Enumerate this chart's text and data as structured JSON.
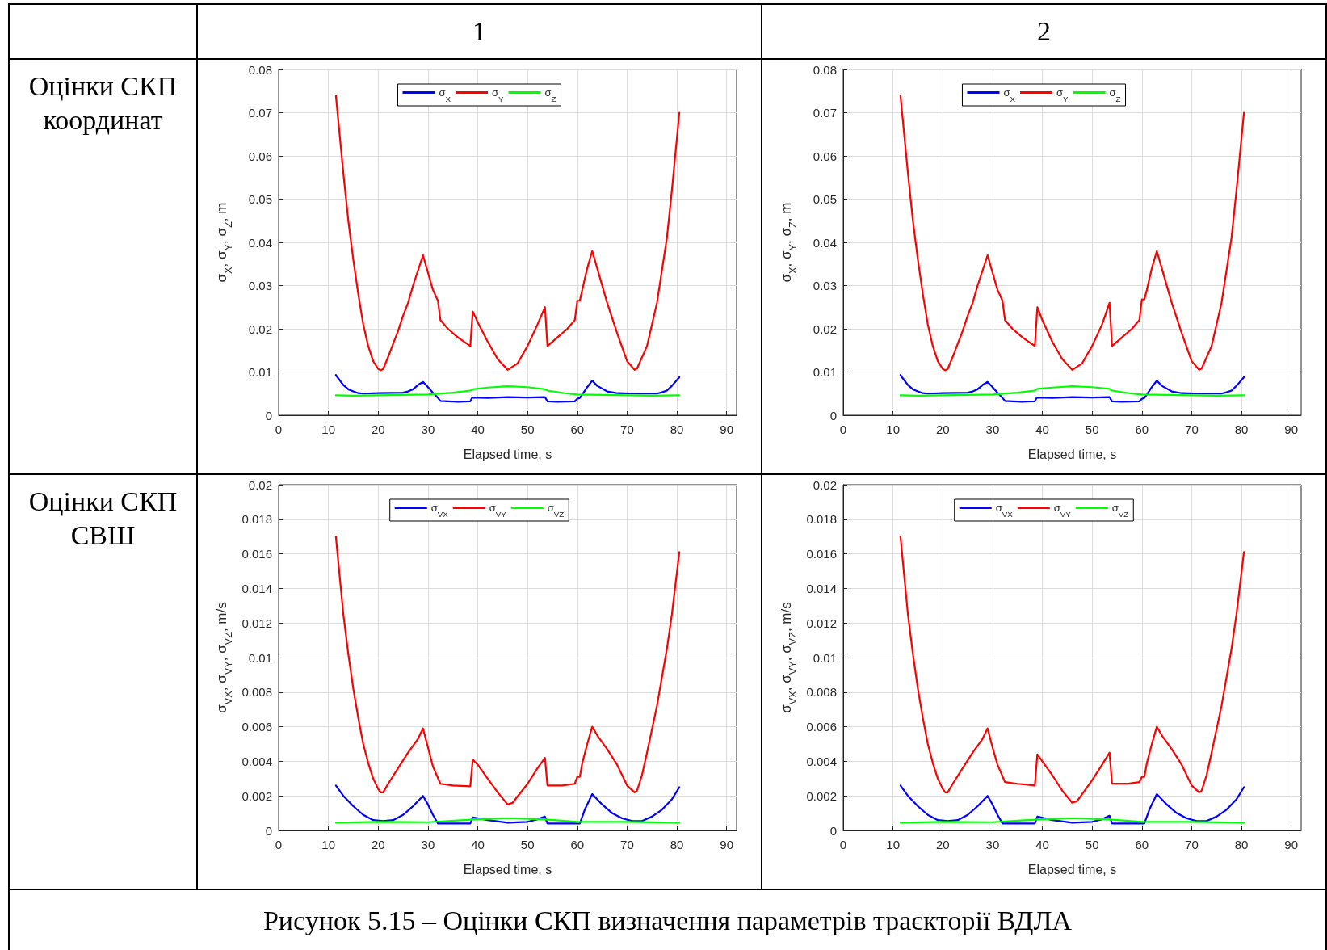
{
  "chart_data": [
    {
      "type": "line",
      "title": "1",
      "subtitle": "Оцінки СКП координат",
      "xlabel": "Elapsed time, s",
      "ylabel": "σ$_{X}$, σ$_{Y}$, σ$_{Z}$, m",
      "xlim": [
        0,
        92
      ],
      "xticks": [
        0,
        10,
        20,
        30,
        40,
        50,
        60,
        70,
        80,
        90
      ],
      "ylim": [
        0,
        0.08
      ],
      "yticks": [
        0,
        0.01,
        0.02,
        0.03,
        0.04,
        0.05,
        0.06,
        0.07,
        0.08
      ],
      "grid": true,
      "legend": "top",
      "marker": "none",
      "line_style": "solid",
      "series": [
        {
          "name": "σ$_{X}$",
          "color": "#0000ff",
          "x": [
            11.5,
            12,
            13,
            14,
            15,
            16,
            17,
            20,
            25,
            26,
            27,
            28,
            29,
            30,
            31,
            32,
            32.5,
            34,
            36,
            38.5,
            38.8,
            39,
            42,
            46,
            50,
            53.5,
            53.8,
            54,
            56,
            59.5,
            60,
            60.5,
            61,
            62,
            63,
            64,
            66,
            68,
            72,
            76,
            77,
            78,
            79,
            80.5
          ],
          "values": [
            0.0093,
            0.0085,
            0.007,
            0.006,
            0.0055,
            0.0051,
            0.005,
            0.0051,
            0.0052,
            0.0055,
            0.006,
            0.007,
            0.0077,
            0.0065,
            0.0052,
            0.004,
            0.0033,
            0.0032,
            0.0031,
            0.0032,
            0.0039,
            0.0041,
            0.004,
            0.0042,
            0.0041,
            0.0042,
            0.0036,
            0.0032,
            0.0031,
            0.0032,
            0.0038,
            0.004,
            0.0048,
            0.0065,
            0.008,
            0.0068,
            0.0055,
            0.0051,
            0.005,
            0.005,
            0.0053,
            0.0057,
            0.0068,
            0.0088
          ]
        },
        {
          "name": "σ$_{Y}$",
          "color": "#ff0000",
          "x": [
            11.5,
            12,
            13,
            14,
            15,
            16,
            17,
            18,
            19,
            20,
            20.5,
            21,
            22,
            23,
            24,
            25,
            26,
            27,
            28,
            29,
            30,
            31,
            32,
            32.5,
            34,
            36,
            38.5,
            39,
            40,
            42,
            44,
            46,
            48,
            50,
            52,
            53.5,
            54,
            56,
            58,
            59.5,
            60,
            60.5,
            61,
            62,
            63,
            64,
            66,
            68,
            70,
            71.5,
            72,
            74,
            75,
            76,
            78,
            79,
            80.5
          ],
          "values": [
            0.074,
            0.068,
            0.056,
            0.045,
            0.036,
            0.028,
            0.021,
            0.016,
            0.0125,
            0.0107,
            0.0104,
            0.0107,
            0.0135,
            0.0165,
            0.0195,
            0.023,
            0.026,
            0.03,
            0.0335,
            0.037,
            0.033,
            0.029,
            0.0265,
            0.022,
            0.02,
            0.018,
            0.016,
            0.024,
            0.0215,
            0.017,
            0.013,
            0.0105,
            0.012,
            0.016,
            0.021,
            0.025,
            0.016,
            0.018,
            0.02,
            0.022,
            0.0265,
            0.0265,
            0.029,
            0.034,
            0.038,
            0.034,
            0.026,
            0.019,
            0.0125,
            0.0105,
            0.0108,
            0.016,
            0.021,
            0.026,
            0.041,
            0.052,
            0.07
          ]
        },
        {
          "name": "σ$_{Z}$",
          "color": "#00ff00",
          "x": [
            11.5,
            15,
            20,
            25,
            30,
            35,
            38.5,
            39,
            42,
            46,
            50,
            53.5,
            54,
            58,
            60,
            65,
            70,
            75,
            80.5
          ],
          "values": [
            0.0046,
            0.0045,
            0.0046,
            0.0047,
            0.0048,
            0.0052,
            0.0057,
            0.006,
            0.0064,
            0.0067,
            0.0065,
            0.006,
            0.0057,
            0.005,
            0.0048,
            0.0047,
            0.0046,
            0.0045,
            0.0046
          ]
        }
      ]
    },
    {
      "type": "line",
      "title": "2",
      "xlabel": "Elapsed time, s",
      "ylabel": "σ$_{X}$, σ$_{Y}$, σ$_{Z}$, m",
      "xlim": [
        0,
        92
      ],
      "xticks": [
        0,
        10,
        20,
        30,
        40,
        50,
        60,
        70,
        80,
        90
      ],
      "ylim": [
        0,
        0.08
      ],
      "yticks": [
        0,
        0.01,
        0.02,
        0.03,
        0.04,
        0.05,
        0.06,
        0.07,
        0.08
      ],
      "grid": true,
      "legend": "top",
      "marker": "none",
      "line_style": "solid",
      "series": [
        {
          "name": "σ$_{X}$",
          "color": "#0000ff",
          "x": [
            11.5,
            12,
            13,
            14,
            15,
            16,
            17,
            20,
            25,
            26,
            27,
            28,
            29,
            30,
            31,
            32,
            32.5,
            34,
            36,
            38.5,
            38.8,
            39,
            42,
            46,
            50,
            53.5,
            53.8,
            54,
            56,
            59.5,
            60,
            60.5,
            61,
            62,
            63,
            64,
            66,
            68,
            72,
            76,
            77,
            78,
            79,
            80.5
          ],
          "values": [
            0.0093,
            0.0085,
            0.007,
            0.006,
            0.0055,
            0.0051,
            0.005,
            0.0051,
            0.0052,
            0.0055,
            0.006,
            0.007,
            0.0077,
            0.0065,
            0.0052,
            0.004,
            0.0033,
            0.0032,
            0.0031,
            0.0032,
            0.0039,
            0.0041,
            0.004,
            0.0042,
            0.0041,
            0.0042,
            0.0036,
            0.0032,
            0.0031,
            0.0032,
            0.0038,
            0.004,
            0.0048,
            0.0065,
            0.008,
            0.0068,
            0.0055,
            0.0051,
            0.005,
            0.005,
            0.0053,
            0.0057,
            0.0068,
            0.0088
          ]
        },
        {
          "name": "σ$_{Y}$",
          "color": "#ff0000",
          "x": [
            11.5,
            12,
            13,
            14,
            15,
            16,
            17,
            18,
            19,
            20,
            20.5,
            21,
            22,
            23,
            24,
            25,
            26,
            27,
            28,
            29,
            30,
            31,
            32,
            32.5,
            34,
            36,
            38.5,
            39,
            40,
            42,
            44,
            46,
            48,
            50,
            52,
            53.5,
            54,
            56,
            58,
            59.5,
            60,
            60.5,
            61,
            62,
            63,
            64,
            66,
            68,
            70,
            71.5,
            72,
            74,
            75,
            76,
            78,
            79,
            80.5
          ],
          "values": [
            0.074,
            0.068,
            0.056,
            0.045,
            0.036,
            0.028,
            0.021,
            0.016,
            0.0125,
            0.0107,
            0.0104,
            0.0107,
            0.0135,
            0.0165,
            0.0195,
            0.023,
            0.026,
            0.03,
            0.0335,
            0.037,
            0.033,
            0.029,
            0.0265,
            0.022,
            0.02,
            0.018,
            0.016,
            0.025,
            0.022,
            0.017,
            0.013,
            0.0105,
            0.012,
            0.016,
            0.021,
            0.026,
            0.016,
            0.018,
            0.02,
            0.022,
            0.0268,
            0.0268,
            0.029,
            0.034,
            0.038,
            0.034,
            0.026,
            0.019,
            0.0125,
            0.0105,
            0.0108,
            0.016,
            0.021,
            0.026,
            0.041,
            0.052,
            0.07
          ]
        },
        {
          "name": "σ$_{Z}$",
          "color": "#00ff00",
          "x": [
            11.5,
            15,
            20,
            25,
            30,
            35,
            38.5,
            39,
            42,
            46,
            50,
            53.5,
            54,
            58,
            60,
            65,
            70,
            75,
            80.5
          ],
          "values": [
            0.0046,
            0.0045,
            0.0046,
            0.0047,
            0.0048,
            0.0052,
            0.0057,
            0.0061,
            0.0064,
            0.0067,
            0.0065,
            0.0061,
            0.0057,
            0.005,
            0.0048,
            0.0047,
            0.0046,
            0.0045,
            0.0046
          ]
        }
      ]
    },
    {
      "type": "line",
      "subtitle": "Оцінки СКП СВШ",
      "xlabel": "Elapsed time, s",
      "ylabel": "σ$_{VX}$, σ$_{VY}$, σ$_{VZ}$, m/s",
      "xlim": [
        0,
        92
      ],
      "xticks": [
        0,
        10,
        20,
        30,
        40,
        50,
        60,
        70,
        80,
        90
      ],
      "ylim": [
        0,
        0.02
      ],
      "yticks": [
        0,
        0.002,
        0.004,
        0.006,
        0.008,
        0.01,
        0.012,
        0.014,
        0.016,
        0.018,
        0.02
      ],
      "grid": true,
      "legend": "top",
      "marker": "none",
      "line_style": "solid",
      "series": [
        {
          "name": "σ$_{VX}$",
          "color": "#0000ff",
          "x": [
            11.5,
            13,
            15,
            17,
            19,
            21,
            23,
            25,
            27,
            29,
            30,
            31,
            32,
            35,
            38.5,
            39,
            42,
            46,
            50,
            52,
            53.5,
            54,
            58,
            60.5,
            61.5,
            63,
            65,
            67,
            69,
            71,
            73,
            75,
            77,
            79,
            80.5
          ],
          "values": [
            0.0026,
            0.002,
            0.0014,
            0.0009,
            0.0006,
            0.00055,
            0.0006,
            0.0009,
            0.0014,
            0.002,
            0.0015,
            0.0009,
            0.0004,
            0.0004,
            0.0004,
            0.00075,
            0.0006,
            0.00045,
            0.0005,
            0.00065,
            0.0008,
            0.0004,
            0.0004,
            0.0004,
            0.0012,
            0.0021,
            0.0015,
            0.001,
            0.0007,
            0.00055,
            0.00055,
            0.0008,
            0.0012,
            0.0018,
            0.0025
          ]
        },
        {
          "name": "σ$_{VY}$",
          "color": "#ff0000",
          "x": [
            11.5,
            12,
            13,
            14,
            15,
            16,
            17,
            18,
            19,
            20,
            20.5,
            21,
            22,
            24,
            26,
            28,
            29,
            30,
            31,
            32.5,
            35,
            38.5,
            39,
            40,
            42,
            44,
            46,
            47,
            50,
            52,
            53.5,
            54,
            57,
            59.5,
            60,
            60.5,
            61,
            62,
            63,
            64,
            66,
            68,
            70,
            71.5,
            72,
            73,
            74,
            76,
            78,
            79,
            80.5
          ],
          "values": [
            0.017,
            0.0155,
            0.0125,
            0.0102,
            0.0082,
            0.0065,
            0.005,
            0.0039,
            0.003,
            0.0024,
            0.0022,
            0.0022,
            0.0027,
            0.0036,
            0.0045,
            0.0053,
            0.0059,
            0.0048,
            0.0037,
            0.0027,
            0.0026,
            0.00255,
            0.0041,
            0.0038,
            0.003,
            0.0022,
            0.0015,
            0.0016,
            0.0027,
            0.0036,
            0.0042,
            0.0026,
            0.0026,
            0.0027,
            0.0031,
            0.0031,
            0.0039,
            0.005,
            0.006,
            0.0055,
            0.0047,
            0.0038,
            0.0026,
            0.0022,
            0.0023,
            0.0032,
            0.0045,
            0.0072,
            0.0105,
            0.0125,
            0.0161
          ]
        },
        {
          "name": "σ$_{VZ}$",
          "color": "#00ff00",
          "x": [
            11.5,
            20,
            30,
            40,
            46,
            53,
            60,
            70,
            80.5
          ],
          "values": [
            0.00045,
            0.0005,
            0.00048,
            0.00065,
            0.0007,
            0.00065,
            0.0005,
            0.0005,
            0.00045
          ]
        }
      ]
    },
    {
      "type": "line",
      "xlabel": "Elapsed time, s",
      "ylabel": "σ$_{VX}$, σ$_{VY}$, σ$_{VZ}$, m/s",
      "xlim": [
        0,
        92
      ],
      "xticks": [
        0,
        10,
        20,
        30,
        40,
        50,
        60,
        70,
        80,
        90
      ],
      "ylim": [
        0,
        0.02
      ],
      "yticks": [
        0,
        0.002,
        0.004,
        0.006,
        0.008,
        0.01,
        0.012,
        0.014,
        0.016,
        0.018,
        0.02
      ],
      "grid": true,
      "legend": "top",
      "marker": "none",
      "line_style": "solid",
      "annotations": [
        "Рисунок 5.15 – Оцінки СКП визначення параметрів траєкторії ВДЛА"
      ],
      "series": [
        {
          "name": "σ$_{VX}$",
          "color": "#0000ff",
          "x": [
            11.5,
            13,
            15,
            17,
            19,
            21,
            23,
            25,
            27,
            29,
            30,
            31,
            32,
            35,
            38.5,
            39,
            42,
            46,
            50,
            52,
            53.5,
            54,
            58,
            60.5,
            61.5,
            63,
            65,
            67,
            69,
            71,
            73,
            75,
            77,
            79,
            80.5
          ],
          "values": [
            0.0026,
            0.002,
            0.0014,
            0.0009,
            0.0006,
            0.00055,
            0.0006,
            0.0009,
            0.0014,
            0.002,
            0.0015,
            0.0009,
            0.0004,
            0.0004,
            0.0004,
            0.0008,
            0.0006,
            0.00045,
            0.0005,
            0.00065,
            0.00085,
            0.0004,
            0.0004,
            0.0004,
            0.0012,
            0.0021,
            0.0015,
            0.001,
            0.0007,
            0.00055,
            0.00055,
            0.0008,
            0.0012,
            0.0018,
            0.0025
          ]
        },
        {
          "name": "σ$_{VY}$",
          "color": "#ff0000",
          "x": [
            11.5,
            12,
            13,
            14,
            15,
            16,
            17,
            18,
            19,
            20,
            20.5,
            21,
            22,
            24,
            26,
            28,
            29,
            30,
            31,
            32.5,
            35,
            38.5,
            39,
            40,
            42,
            44,
            46,
            47,
            50,
            52,
            53.5,
            54,
            57,
            59.5,
            60,
            60.5,
            61,
            62,
            63,
            64,
            66,
            68,
            70,
            71.5,
            72,
            73,
            74,
            76,
            78,
            79,
            80.5
          ],
          "values": [
            0.017,
            0.0155,
            0.0125,
            0.0102,
            0.0082,
            0.0065,
            0.005,
            0.0039,
            0.003,
            0.0024,
            0.0022,
            0.0022,
            0.0027,
            0.0036,
            0.0045,
            0.0053,
            0.0059,
            0.0048,
            0.0038,
            0.0028,
            0.0027,
            0.0026,
            0.0044,
            0.004,
            0.0032,
            0.0023,
            0.0016,
            0.0017,
            0.0029,
            0.0038,
            0.0045,
            0.0027,
            0.0027,
            0.0028,
            0.0031,
            0.0031,
            0.0039,
            0.005,
            0.006,
            0.0055,
            0.0047,
            0.0038,
            0.0026,
            0.0022,
            0.0023,
            0.0032,
            0.0045,
            0.0072,
            0.0105,
            0.0125,
            0.0161
          ]
        },
        {
          "name": "σ$_{VZ}$",
          "color": "#00ff00",
          "x": [
            11.5,
            20,
            30,
            40,
            46,
            53,
            60,
            70,
            80.5
          ],
          "values": [
            0.00045,
            0.0005,
            0.00048,
            0.00065,
            0.0007,
            0.00065,
            0.0005,
            0.0005,
            0.00045
          ]
        }
      ]
    }
  ]
}
